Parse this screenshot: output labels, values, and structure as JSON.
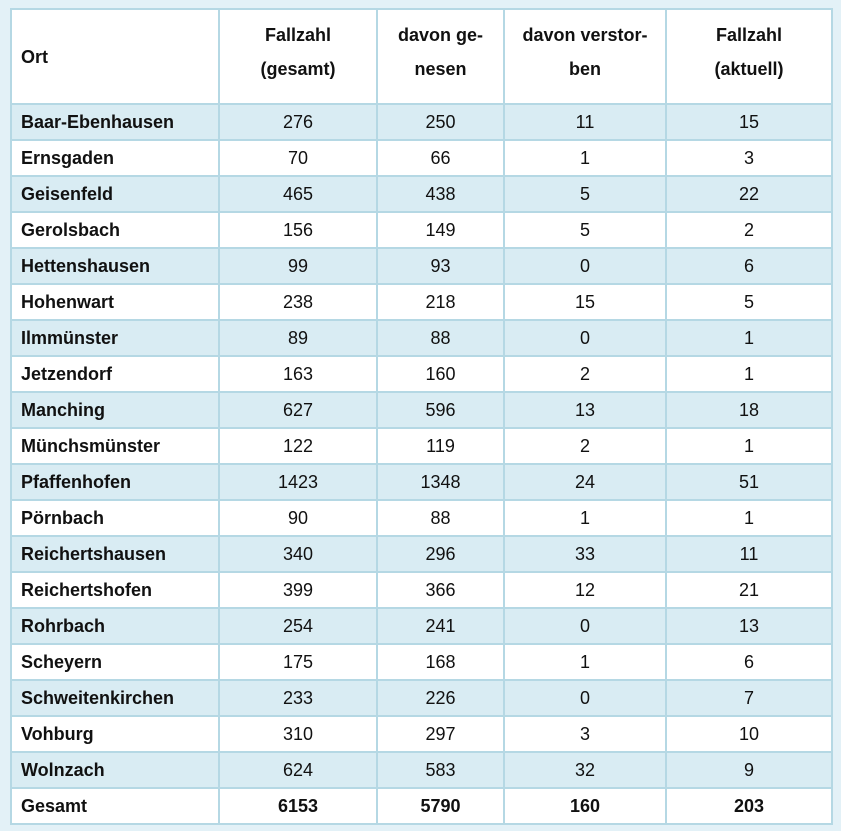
{
  "colors": {
    "page_background": "#e3f1f7",
    "grid_border": "#b5d8e4",
    "stripe_row": "#d9ecf3",
    "plain_row": "#ffffff",
    "text": "#111111"
  },
  "chart_data": {
    "type": "table",
    "columns": [
      "Ort",
      "Fallzahl (gesamt)",
      "davon genesen",
      "davon verstorben",
      "Fallzahl (aktuell)"
    ],
    "header_lines": [
      [
        "Ort"
      ],
      [
        "Fallzahl",
        "(gesamt)"
      ],
      [
        "davon ge-",
        "nesen"
      ],
      [
        "davon verstor-",
        "ben"
      ],
      [
        "Fallzahl",
        "(aktuell)"
      ]
    ],
    "rows": [
      {
        "ort": "Baar-Ebenhausen",
        "values": [
          276,
          250,
          11,
          15
        ]
      },
      {
        "ort": "Ernsgaden",
        "values": [
          70,
          66,
          1,
          3
        ]
      },
      {
        "ort": "Geisenfeld",
        "values": [
          465,
          438,
          5,
          22
        ]
      },
      {
        "ort": "Gerolsbach",
        "values": [
          156,
          149,
          5,
          2
        ]
      },
      {
        "ort": "Hettenshausen",
        "values": [
          99,
          93,
          0,
          6
        ]
      },
      {
        "ort": "Hohenwart",
        "values": [
          238,
          218,
          15,
          5
        ]
      },
      {
        "ort": "Ilmmünster",
        "values": [
          89,
          88,
          0,
          1
        ]
      },
      {
        "ort": "Jetzendorf",
        "values": [
          163,
          160,
          2,
          1
        ]
      },
      {
        "ort": "Manching",
        "values": [
          627,
          596,
          13,
          18
        ]
      },
      {
        "ort": "Münchsmünster",
        "values": [
          122,
          119,
          2,
          1
        ]
      },
      {
        "ort": "Pfaffenhofen",
        "values": [
          1423,
          1348,
          24,
          51
        ]
      },
      {
        "ort": "Pörnbach",
        "values": [
          90,
          88,
          1,
          1
        ]
      },
      {
        "ort": "Reichertshausen",
        "values": [
          340,
          296,
          33,
          11
        ]
      },
      {
        "ort": "Reichertshofen",
        "values": [
          399,
          366,
          12,
          21
        ]
      },
      {
        "ort": "Rohrbach",
        "values": [
          254,
          241,
          0,
          13
        ]
      },
      {
        "ort": "Scheyern",
        "values": [
          175,
          168,
          1,
          6
        ]
      },
      {
        "ort": "Schweitenkirchen",
        "values": [
          233,
          226,
          0,
          7
        ]
      },
      {
        "ort": "Vohburg",
        "values": [
          310,
          297,
          3,
          10
        ]
      },
      {
        "ort": "Wolnzach",
        "values": [
          624,
          583,
          32,
          9
        ]
      }
    ],
    "total": {
      "ort": "Gesamt",
      "values": [
        6153,
        5790,
        160,
        203
      ]
    }
  }
}
